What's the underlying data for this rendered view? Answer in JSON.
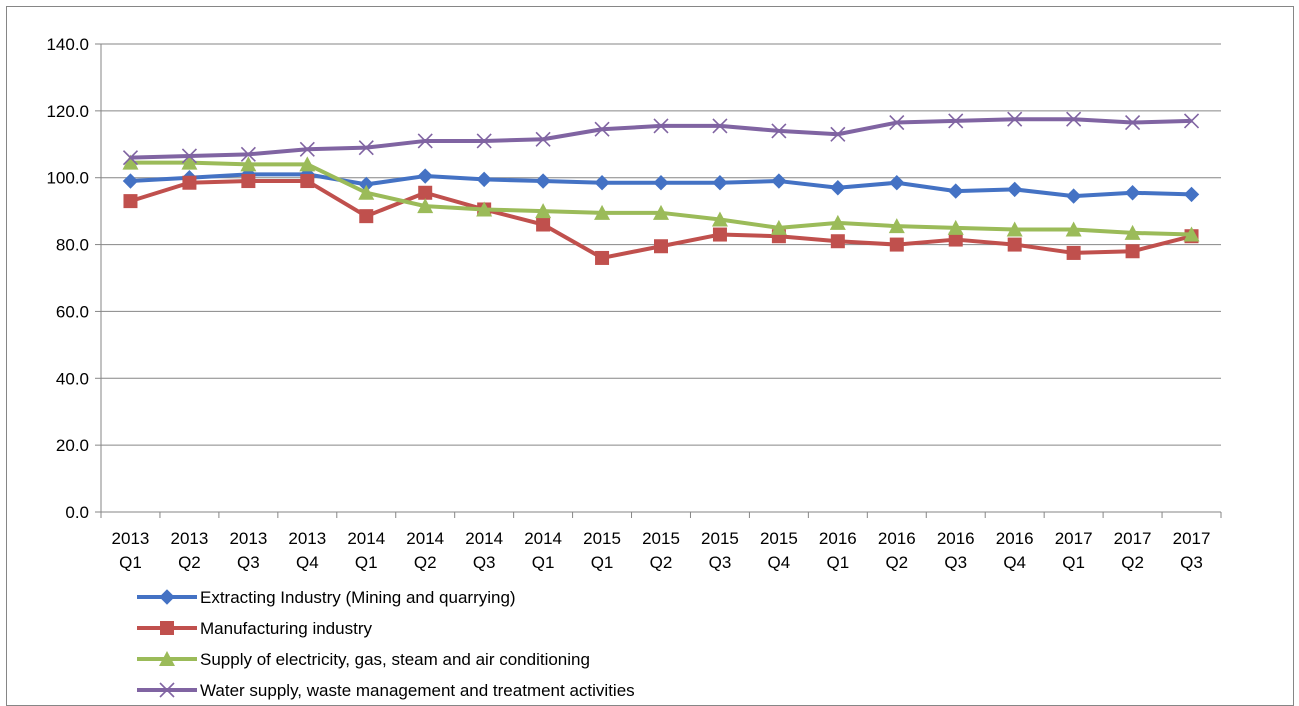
{
  "chart_data": {
    "type": "line",
    "title": "",
    "xlabel": "",
    "ylabel": "",
    "ylim": [
      0,
      140
    ],
    "yticks": [
      "0.0",
      "20.0",
      "40.0",
      "60.0",
      "80.0",
      "100.0",
      "120.0",
      "140.0"
    ],
    "grid": true,
    "legend": "bottom-left",
    "categories": [
      [
        "2013",
        "Q1"
      ],
      [
        "2013",
        "Q2"
      ],
      [
        "2013",
        "Q3"
      ],
      [
        "2013",
        "Q4"
      ],
      [
        "2014",
        "Q1"
      ],
      [
        "2014",
        "Q2"
      ],
      [
        "2014",
        "Q3"
      ],
      [
        "2014",
        "Q1"
      ],
      [
        "2015",
        "Q1"
      ],
      [
        "2015",
        "Q2"
      ],
      [
        "2015",
        "Q3"
      ],
      [
        "2015",
        "Q4"
      ],
      [
        "2016",
        "Q1"
      ],
      [
        "2016",
        "Q2"
      ],
      [
        "2016",
        "Q3"
      ],
      [
        "2016",
        "Q4"
      ],
      [
        "2017",
        "Q1"
      ],
      [
        "2017",
        "Q2"
      ],
      [
        "2017",
        "Q3"
      ]
    ],
    "series": [
      {
        "name": "Extracting Industry (Mining and quarrying)",
        "color": "#4472C4",
        "marker": "diamond",
        "values": [
          99.0,
          100.0,
          101.0,
          101.0,
          98.0,
          100.5,
          99.5,
          99.0,
          98.5,
          98.5,
          98.5,
          99.0,
          97.0,
          98.5,
          96.0,
          96.5,
          94.5,
          95.5,
          95.0
        ]
      },
      {
        "name": "Manufacturing industry",
        "color": "#C0504D",
        "marker": "square",
        "values": [
          93.0,
          98.5,
          99.0,
          99.0,
          88.5,
          95.5,
          90.5,
          86.0,
          76.0,
          79.5,
          83.0,
          82.5,
          81.0,
          80.0,
          81.5,
          80.0,
          77.5,
          78.0,
          82.5
        ]
      },
      {
        "name": "Supply of electricity, gas, steam and air conditioning",
        "color": "#9BBB59",
        "marker": "triangle",
        "values": [
          104.5,
          104.5,
          104.0,
          104.0,
          95.5,
          91.5,
          90.5,
          90.0,
          89.5,
          89.5,
          87.5,
          85.0,
          86.5,
          85.5,
          85.0,
          84.5,
          84.5,
          83.5,
          83.0
        ]
      },
      {
        "name": "Water supply, waste management and treatment activities",
        "color": "#8064A2",
        "marker": "x",
        "values": [
          106.0,
          106.5,
          107.0,
          108.5,
          109.0,
          111.0,
          111.0,
          111.5,
          114.5,
          115.5,
          115.5,
          114.0,
          113.0,
          116.5,
          117.0,
          117.5,
          117.5,
          116.5,
          117.0
        ]
      }
    ]
  }
}
